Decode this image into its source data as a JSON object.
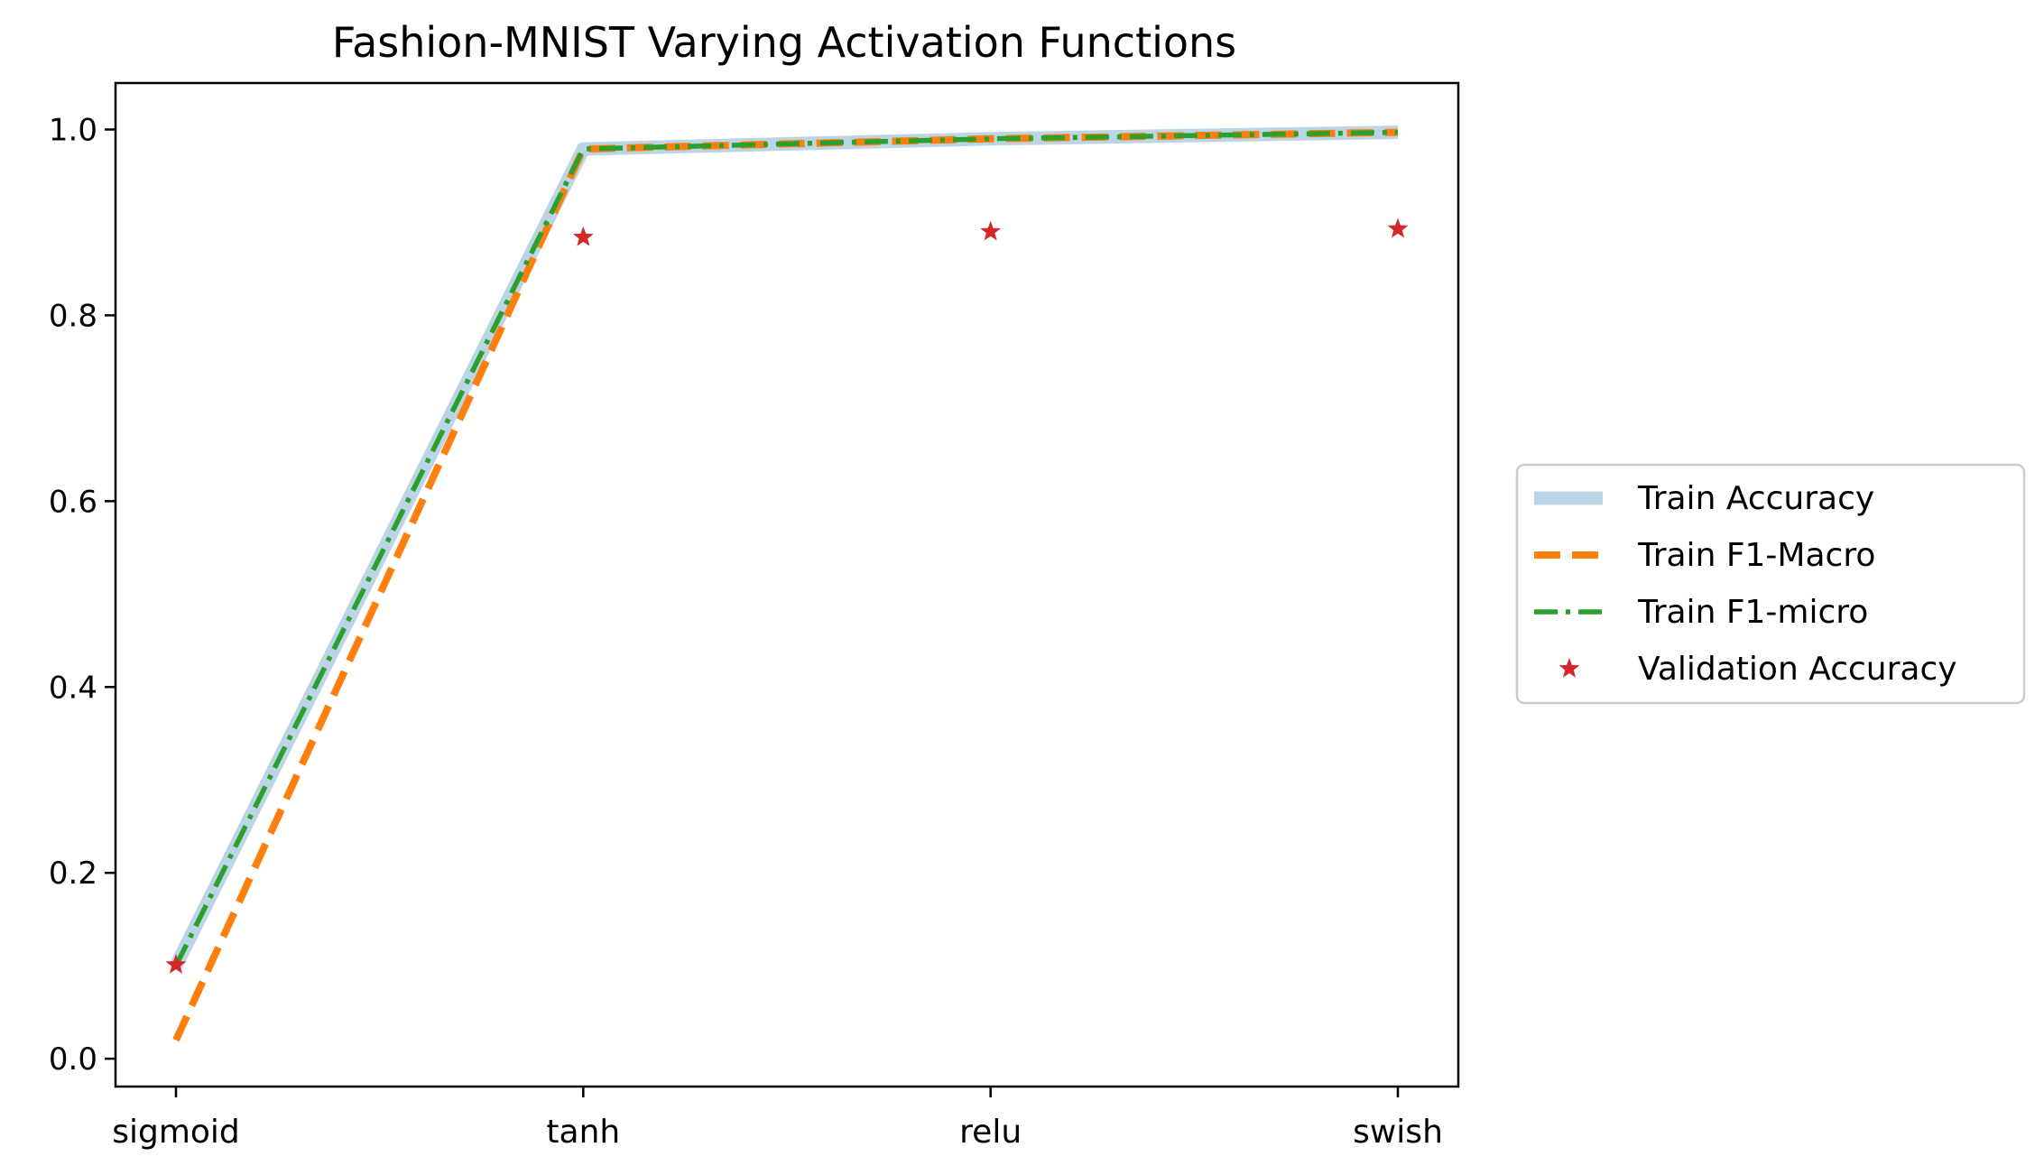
{
  "chart_data": {
    "type": "line",
    "title": "Fashion-MNIST Varying Activation Functions",
    "xlabel": "",
    "ylabel": "",
    "categories": [
      "sigmoid",
      "tanh",
      "relu",
      "swish"
    ],
    "ylim": [
      -0.03,
      1.05
    ],
    "yticks": [
      0.0,
      0.2,
      0.4,
      0.6,
      0.8,
      1.0
    ],
    "ytick_labels": [
      "0.0",
      "0.2",
      "0.4",
      "0.6",
      "0.8",
      "1.0"
    ],
    "grid": false,
    "legend_position": "right, outside plot",
    "series": [
      {
        "name": "Train Accuracy",
        "style": "thick-solid",
        "color": "#bcd5e6",
        "values": [
          0.1,
          0.979,
          0.99,
          0.997
        ]
      },
      {
        "name": "Train F1-Macro",
        "style": "dashed",
        "color": "#ff7f0e",
        "values": [
          0.02,
          0.979,
          0.99,
          0.997
        ]
      },
      {
        "name": "Train F1-micro",
        "style": "dash-dot",
        "color": "#2ca02c",
        "values": [
          0.1,
          0.979,
          0.99,
          0.997
        ]
      },
      {
        "name": "Validation Accuracy",
        "style": "star-markers",
        "color": "#d62728",
        "values": [
          0.101,
          0.884,
          0.89,
          0.893
        ]
      }
    ]
  }
}
